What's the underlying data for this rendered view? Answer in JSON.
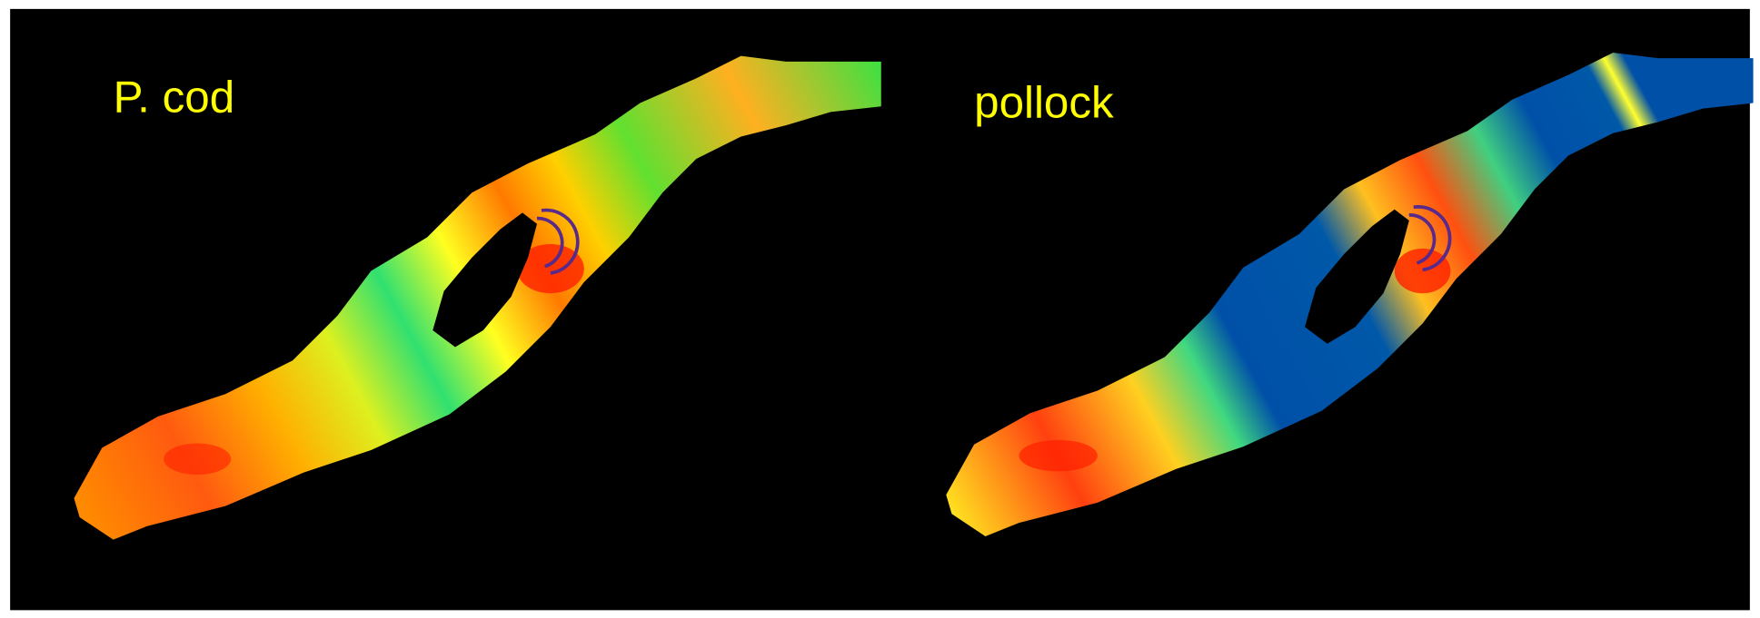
{
  "panels": [
    {
      "label": "P. cod"
    },
    {
      "label": "pollock"
    }
  ]
}
